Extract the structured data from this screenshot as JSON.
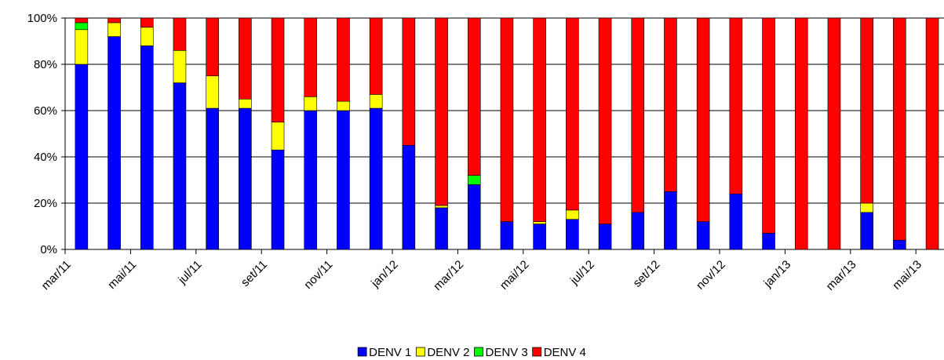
{
  "chart_data": {
    "type": "stacked_bar",
    "categories": [
      "mar/11",
      null,
      "mai/11",
      null,
      "jul/11",
      null,
      "set/11",
      null,
      "nov/11",
      null,
      "jan/12",
      null,
      "mar/12",
      null,
      "mai/12",
      null,
      "jul/12",
      null,
      "set/12",
      null,
      "nov/12",
      null,
      "jan/13",
      null,
      "mar/13",
      null,
      "mai/13"
    ],
    "series": [
      {
        "name": "DENV 1",
        "color": "#0000ff",
        "values": [
          80,
          92,
          88,
          72,
          61,
          61,
          43,
          60,
          60,
          61,
          45,
          18,
          28,
          12,
          11,
          13,
          11,
          16,
          25,
          12,
          24,
          7,
          0,
          0,
          16,
          4,
          0
        ]
      },
      {
        "name": "DENV 2",
        "color": "#ffff00",
        "values": [
          15,
          6,
          8,
          14,
          14,
          4,
          12,
          6,
          4,
          6,
          0,
          1,
          0,
          0,
          1,
          4,
          0,
          0,
          0,
          0,
          0,
          0,
          0,
          0,
          4,
          0,
          0
        ]
      },
      {
        "name": "DENV 3",
        "color": "#00ff00",
        "values": [
          3,
          0,
          0,
          0,
          0,
          0,
          0,
          0,
          0,
          0,
          0,
          0,
          4,
          0,
          0,
          0,
          0,
          0,
          0,
          0,
          0,
          0,
          0,
          0,
          0,
          0,
          0
        ]
      },
      {
        "name": "DENV 4",
        "color": "#ff0000",
        "values": [
          2,
          2,
          4,
          14,
          25,
          35,
          45,
          34,
          36,
          33,
          55,
          81,
          68,
          88,
          88,
          83,
          89,
          84,
          75,
          88,
          76,
          93,
          100,
          100,
          80,
          96,
          100
        ]
      }
    ],
    "ylim": [
      0,
      100
    ],
    "yticks": [
      {
        "value": 0,
        "label": "0%"
      },
      {
        "value": 20,
        "label": "20%"
      },
      {
        "value": 40,
        "label": "40%"
      },
      {
        "value": 60,
        "label": "60%"
      },
      {
        "value": 80,
        "label": "80%"
      },
      {
        "value": 100,
        "label": "100%"
      }
    ],
    "grid": true,
    "legend": "bottom"
  }
}
